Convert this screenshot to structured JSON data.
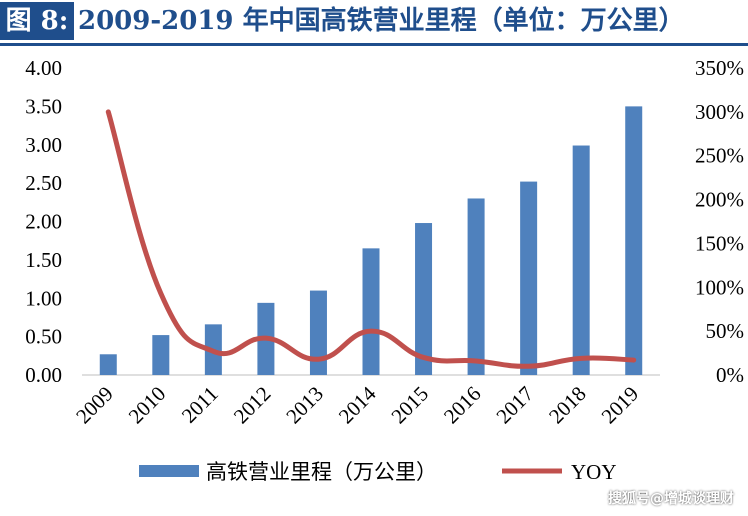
{
  "header": {
    "fig_label": "图 8:",
    "title": "2009-2019 年中国高铁营业里程（单位：万公里）"
  },
  "watermark": "搜狐号@增城谈理财",
  "colors": {
    "bar": "#4f81bd",
    "line": "#c0504d",
    "title": "#1f4e8c"
  },
  "chart_data": {
    "type": "bar",
    "categories": [
      "2009",
      "2010",
      "2011",
      "2012",
      "2013",
      "2014",
      "2015",
      "2016",
      "2017",
      "2018",
      "2019"
    ],
    "series": [
      {
        "name": "高铁营业里程（万公里）",
        "type": "bar",
        "axis": "left",
        "values": [
          0.27,
          0.52,
          0.66,
          0.94,
          1.1,
          1.65,
          1.98,
          2.3,
          2.52,
          2.99,
          3.5
        ]
      },
      {
        "name": "YOY",
        "type": "line",
        "axis": "right",
        "values": [
          300,
          93,
          27,
          42,
          18,
          50,
          20,
          16,
          10,
          19,
          17
        ]
      }
    ],
    "left_axis": {
      "ylim": [
        0,
        4
      ],
      "ticks": [
        "0.00",
        "0.50",
        "1.00",
        "1.50",
        "2.00",
        "2.50",
        "3.00",
        "3.50",
        "4.00"
      ]
    },
    "right_axis": {
      "ylim": [
        0,
        350
      ],
      "ticks": [
        "0%",
        "50%",
        "100%",
        "150%",
        "200%",
        "250%",
        "300%",
        "350%"
      ]
    },
    "grid": false,
    "legend_position": "bottom"
  }
}
